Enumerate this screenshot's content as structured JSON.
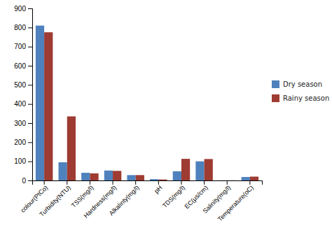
{
  "chart_data": {
    "type": "bar",
    "categories": [
      "colour(PtCo)",
      "Turbidity(NTU)",
      "TSS(mg/l)",
      "Hardness(mg/l)",
      "Alkalinty(mg/l)",
      "pH",
      "TDS(mg/l)",
      "EC(µs/cm)",
      "Salinity(mg/l)",
      "Temperature(oC)"
    ],
    "series": [
      {
        "name": "Dry season",
        "color": "#4F81BD",
        "values": [
          810,
          95,
          40,
          52,
          28,
          7,
          48,
          100,
          0.5,
          18
        ]
      },
      {
        "name": "Rainy season",
        "color": "#9E3B32",
        "values": [
          775,
          335,
          37,
          50,
          28,
          5,
          113,
          112,
          0.5,
          20
        ]
      }
    ],
    "ylim": [
      0,
      900
    ],
    "yticks": [
      0,
      100,
      200,
      300,
      400,
      500,
      600,
      700,
      800,
      900
    ],
    "grid": false,
    "legend": "right"
  }
}
